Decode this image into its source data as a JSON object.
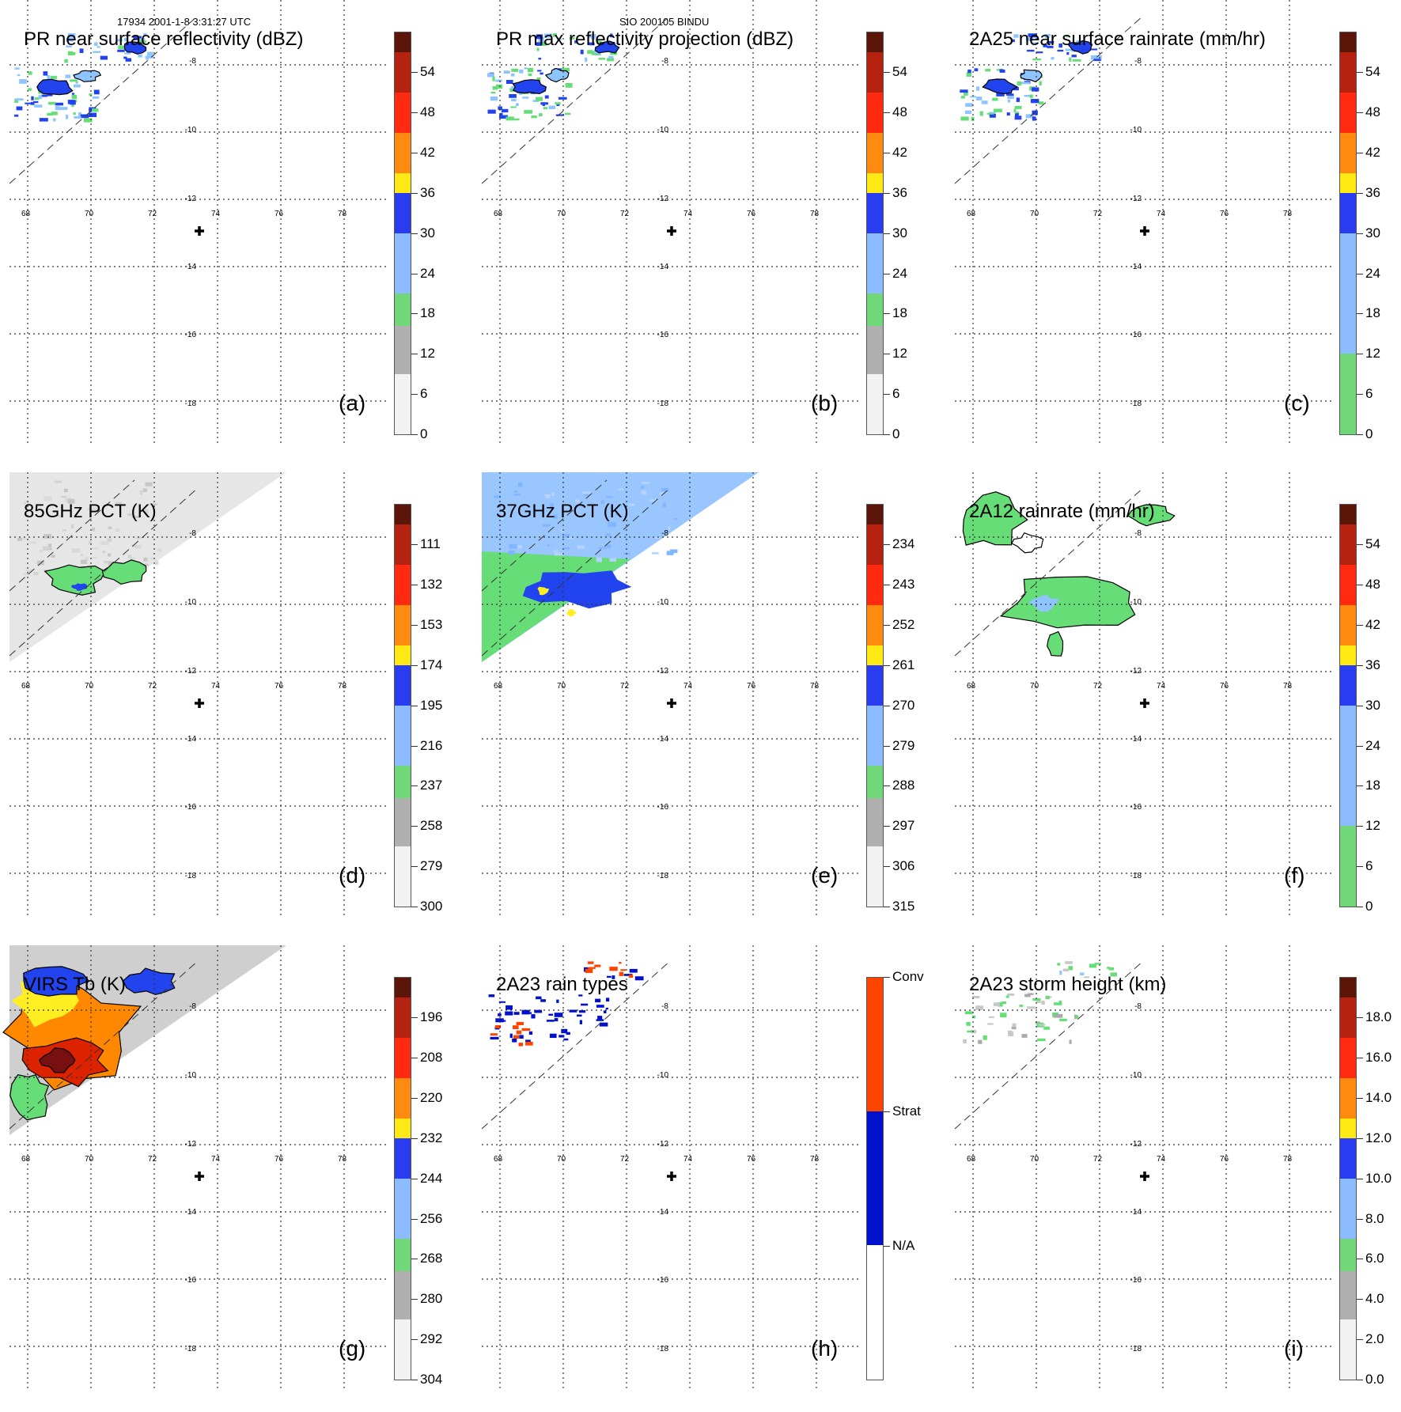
{
  "header": {
    "orbit_time": "17934 2001-1-8 3:31:27 UTC",
    "storm_id": "SIO 200105 BINDU"
  },
  "axes": {
    "lat_labels": [
      "-8",
      "-10",
      "-12",
      "-14",
      "-16",
      "-18"
    ],
    "lon_labels": [
      "68",
      "70",
      "72",
      "74",
      "76",
      "78"
    ]
  },
  "colors": {
    "green": "#66dd77",
    "lightblue": "#8ec4ff",
    "blue": "#2244ee",
    "yellow": "#ffee22",
    "orange": "#ff8800",
    "red": "#dd2200",
    "darkred": "#771111",
    "gray": "#bbbbbb",
    "strat": "#0011cc",
    "conv": "#ff4400"
  },
  "panels": [
    {
      "id": "a",
      "title": "PR near surface reflectivity (dBZ)",
      "letter": "(a)",
      "colorbar_labels": [
        "54",
        "48",
        "42",
        "36",
        "30",
        "24",
        "18",
        "12",
        "6",
        "0"
      ],
      "colorbar_stops": [
        {
          "color": "#5b1509",
          "frac": 0.05
        },
        {
          "color": "#b52210",
          "frac": 0.1
        },
        {
          "color": "#ff2a10",
          "frac": 0.1
        },
        {
          "color": "#ff8a10",
          "frac": 0.1
        },
        {
          "color": "#ffe914",
          "frac": 0.05
        },
        {
          "color": "#2a3cf0",
          "frac": 0.1
        },
        {
          "color": "#8cbcff",
          "frac": 0.15
        },
        {
          "color": "#70d878",
          "frac": 0.08
        },
        {
          "color": "#b0b0b0",
          "frac": 0.12
        },
        {
          "color": "#f2f2f2",
          "frac": 0.15
        }
      ],
      "field": "sparse"
    },
    {
      "id": "b",
      "title": "PR max reflectivity projection (dBZ)",
      "letter": "(b)",
      "colorbar_labels": [
        "54",
        "48",
        "42",
        "36",
        "30",
        "24",
        "18",
        "12",
        "6",
        "0"
      ],
      "colorbar_stops": [
        {
          "color": "#5b1509",
          "frac": 0.05
        },
        {
          "color": "#b52210",
          "frac": 0.1
        },
        {
          "color": "#ff2a10",
          "frac": 0.1
        },
        {
          "color": "#ff8a10",
          "frac": 0.1
        },
        {
          "color": "#ffe914",
          "frac": 0.05
        },
        {
          "color": "#2a3cf0",
          "frac": 0.1
        },
        {
          "color": "#8cbcff",
          "frac": 0.15
        },
        {
          "color": "#70d878",
          "frac": 0.08
        },
        {
          "color": "#b0b0b0",
          "frac": 0.12
        },
        {
          "color": "#f2f2f2",
          "frac": 0.15
        }
      ],
      "field": "sparse"
    },
    {
      "id": "c",
      "title": "2A25 near surface rainrate (mm/hr)",
      "letter": "(c)",
      "colorbar_labels": [
        "54",
        "48",
        "42",
        "36",
        "30",
        "24",
        "18",
        "12",
        "6",
        "0"
      ],
      "colorbar_stops": [
        {
          "color": "#5b1509",
          "frac": 0.05
        },
        {
          "color": "#b52210",
          "frac": 0.1
        },
        {
          "color": "#ff2a10",
          "frac": 0.1
        },
        {
          "color": "#ff8a10",
          "frac": 0.1
        },
        {
          "color": "#ffe914",
          "frac": 0.05
        },
        {
          "color": "#2a3cf0",
          "frac": 0.1
        },
        {
          "color": "#8cbcff",
          "frac": 0.3
        },
        {
          "color": "#70d878",
          "frac": 0.2
        }
      ],
      "field": "sparse"
    },
    {
      "id": "d",
      "title": "85GHz PCT (K)",
      "letter": "(d)",
      "colorbar_labels": [
        "111",
        "132",
        "153",
        "174",
        "195",
        "216",
        "237",
        "258",
        "279",
        "300"
      ],
      "colorbar_stops": [
        {
          "color": "#5b1509",
          "frac": 0.05
        },
        {
          "color": "#b52210",
          "frac": 0.1
        },
        {
          "color": "#ff2a10",
          "frac": 0.1
        },
        {
          "color": "#ff8a10",
          "frac": 0.1
        },
        {
          "color": "#ffe914",
          "frac": 0.05
        },
        {
          "color": "#2a3cf0",
          "frac": 0.1
        },
        {
          "color": "#8cbcff",
          "frac": 0.15
        },
        {
          "color": "#70d878",
          "frac": 0.08
        },
        {
          "color": "#b0b0b0",
          "frac": 0.12
        },
        {
          "color": "#f2f2f2",
          "frac": 0.15
        }
      ],
      "field": "swath85"
    },
    {
      "id": "e",
      "title": "37GHz PCT (K)",
      "letter": "(e)",
      "colorbar_labels": [
        "234",
        "243",
        "252",
        "261",
        "270",
        "279",
        "288",
        "297",
        "306",
        "315"
      ],
      "colorbar_stops": [
        {
          "color": "#5b1509",
          "frac": 0.05
        },
        {
          "color": "#b52210",
          "frac": 0.1
        },
        {
          "color": "#ff2a10",
          "frac": 0.1
        },
        {
          "color": "#ff8a10",
          "frac": 0.1
        },
        {
          "color": "#ffe914",
          "frac": 0.05
        },
        {
          "color": "#2a3cf0",
          "frac": 0.1
        },
        {
          "color": "#8cbcff",
          "frac": 0.15
        },
        {
          "color": "#70d878",
          "frac": 0.08
        },
        {
          "color": "#b0b0b0",
          "frac": 0.12
        },
        {
          "color": "#f2f2f2",
          "frac": 0.15
        }
      ],
      "field": "swath37"
    },
    {
      "id": "f",
      "title": "2A12 rainrate (mm/hr)",
      "letter": "(f)",
      "colorbar_labels": [
        "54",
        "48",
        "42",
        "36",
        "30",
        "24",
        "18",
        "12",
        "6",
        "0"
      ],
      "colorbar_stops": [
        {
          "color": "#5b1509",
          "frac": 0.05
        },
        {
          "color": "#b52210",
          "frac": 0.1
        },
        {
          "color": "#ff2a10",
          "frac": 0.1
        },
        {
          "color": "#ff8a10",
          "frac": 0.1
        },
        {
          "color": "#ffe914",
          "frac": 0.05
        },
        {
          "color": "#2a3cf0",
          "frac": 0.1
        },
        {
          "color": "#8cbcff",
          "frac": 0.3
        },
        {
          "color": "#70d878",
          "frac": 0.2
        }
      ],
      "field": "rain2a12"
    },
    {
      "id": "g",
      "title": "VIRS Tb (K)",
      "letter": "(g)",
      "colorbar_labels": [
        "196",
        "208",
        "220",
        "232",
        "244",
        "256",
        "268",
        "280",
        "292",
        "304"
      ],
      "colorbar_stops": [
        {
          "color": "#5b1509",
          "frac": 0.05
        },
        {
          "color": "#b52210",
          "frac": 0.1
        },
        {
          "color": "#ff2a10",
          "frac": 0.1
        },
        {
          "color": "#ff8a10",
          "frac": 0.1
        },
        {
          "color": "#ffe914",
          "frac": 0.05
        },
        {
          "color": "#2a3cf0",
          "frac": 0.1
        },
        {
          "color": "#8cbcff",
          "frac": 0.15
        },
        {
          "color": "#70d878",
          "frac": 0.08
        },
        {
          "color": "#b0b0b0",
          "frac": 0.12
        },
        {
          "color": "#f2f2f2",
          "frac": 0.15
        }
      ],
      "field": "virs"
    },
    {
      "id": "h",
      "title": "2A23 rain types",
      "letter": "(h)",
      "colorbar_labels": [
        "Conv",
        "Strat",
        "N/A"
      ],
      "colorbar_stops": [
        {
          "color": "#ff4400",
          "frac": 0.333
        },
        {
          "color": "#0011cc",
          "frac": 0.333
        },
        {
          "color": "#ffffff",
          "frac": 0.334
        }
      ],
      "field": "raintype"
    },
    {
      "id": "i",
      "title": "2A23 storm height (km)",
      "letter": "(i)",
      "colorbar_labels": [
        "18.0",
        "16.0",
        "14.0",
        "12.0",
        "10.0",
        "8.0",
        "6.0",
        "4.0",
        "2.0",
        "0.0"
      ],
      "colorbar_stops": [
        {
          "color": "#5b1509",
          "frac": 0.05
        },
        {
          "color": "#b52210",
          "frac": 0.1
        },
        {
          "color": "#ff2a10",
          "frac": 0.1
        },
        {
          "color": "#ff8a10",
          "frac": 0.1
        },
        {
          "color": "#ffe914",
          "frac": 0.05
        },
        {
          "color": "#2a3cf0",
          "frac": 0.1
        },
        {
          "color": "#8cbcff",
          "frac": 0.15
        },
        {
          "color": "#70d878",
          "frac": 0.08
        },
        {
          "color": "#b0b0b0",
          "frac": 0.12
        },
        {
          "color": "#f2f2f2",
          "frac": 0.15
        }
      ],
      "field": "height"
    }
  ]
}
